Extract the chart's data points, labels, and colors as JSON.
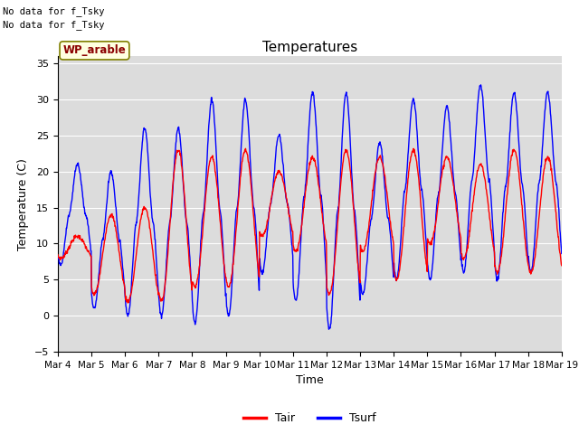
{
  "title": "Temperatures",
  "xlabel": "Time",
  "ylabel": "Temperature (C)",
  "ylim": [
    -5,
    36
  ],
  "yticks": [
    -5,
    0,
    5,
    10,
    15,
    20,
    25,
    30,
    35
  ],
  "background_color": "#dcdcdc",
  "annotation_text1": "No data for f_Tsky",
  "annotation_text2": "No data for f_Tsky",
  "box_label": "WP_arable",
  "legend_entries": [
    "Tair",
    "Tsurf"
  ],
  "tair_color": "red",
  "tsurf_color": "blue",
  "line_width": 1.0,
  "n_days": 15,
  "pts_per_day": 96,
  "x_tick_labels": [
    "Mar 4",
    "Mar 5",
    "Mar 6",
    "Mar 7",
    "Mar 8",
    "Mar 9",
    "Mar 10",
    "Mar 11",
    "Mar 12",
    "Mar 13",
    "Mar 14",
    "Mar 15",
    "Mar 16",
    "Mar 17",
    "Mar 18",
    "Mar 19"
  ],
  "tsurf_max": [
    21,
    20,
    26,
    26,
    30,
    30,
    25,
    31,
    31,
    24,
    30,
    29,
    32,
    31,
    31
  ],
  "tsurf_min": [
    7,
    1,
    0,
    0,
    -1,
    0,
    6,
    2,
    -2,
    3,
    5,
    5,
    6,
    5,
    6
  ],
  "tair_max": [
    11,
    14,
    15,
    23,
    22,
    23,
    20,
    22,
    23,
    22,
    23,
    22,
    21,
    23,
    22
  ],
  "tair_min": [
    8,
    3,
    2,
    2,
    4,
    4,
    11,
    9,
    3,
    9,
    5,
    10,
    8,
    6,
    6
  ]
}
